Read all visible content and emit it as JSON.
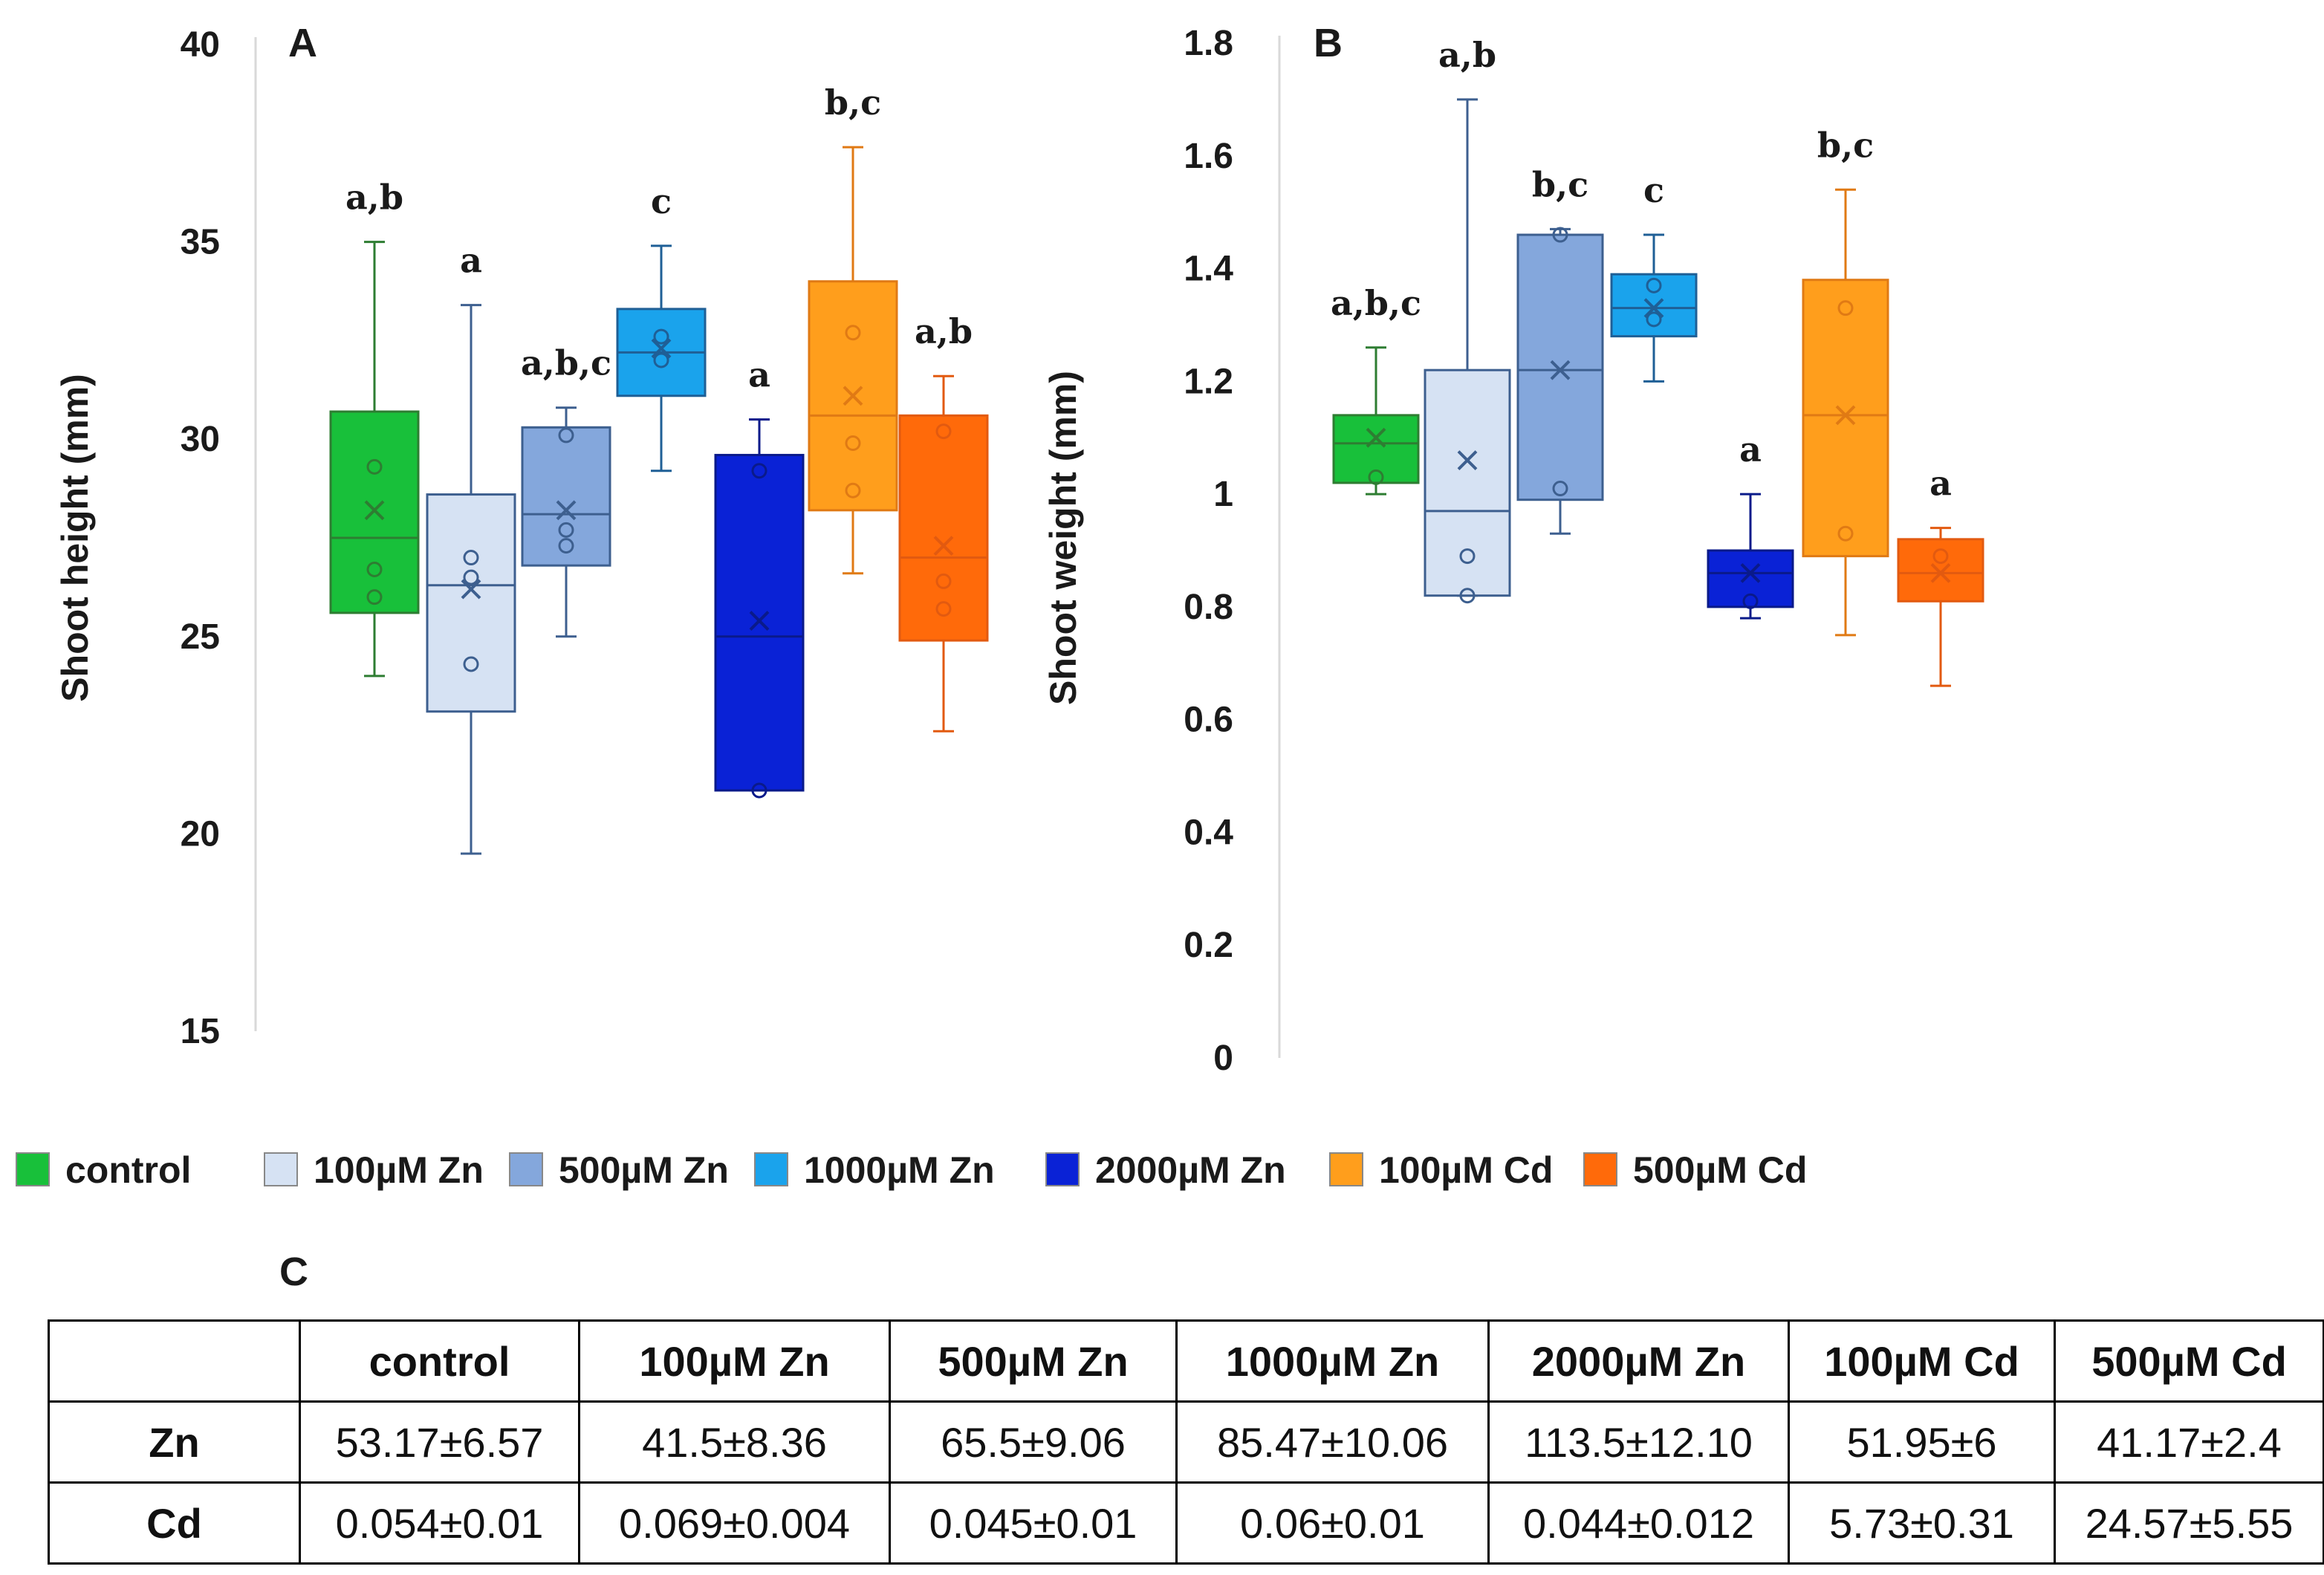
{
  "panel_c_label": "C",
  "table": {
    "headers": [
      "",
      "control",
      "100µM Zn",
      "500µM Zn",
      "1000µM Zn",
      "2000µM Zn",
      "100µM Cd",
      "500µM Cd"
    ],
    "rows": [
      {
        "label": "Zn",
        "values": [
          "53.17±6.57",
          "41.5±8.36",
          "65.5±9.06",
          "85.47±10.06",
          "113.5±12.10",
          "51.95±6",
          "41.17±2.4"
        ]
      },
      {
        "label": "Cd",
        "values": [
          "0.054±0.01",
          "0.069±0.004",
          "0.045±0.01",
          "0.06±0.01",
          "0.044±0.012",
          "5.73±0.31",
          "24.57±5.55"
        ]
      }
    ]
  },
  "legend": [
    {
      "name": "control",
      "color": "#18c03a",
      "stroke": "#2e7d32"
    },
    {
      "name": "100µM Zn",
      "color": "#d6e2f3",
      "stroke": "#3d5f8f"
    },
    {
      "name": "500µM Zn",
      "color": "#84a7dc",
      "stroke": "#3d5f8f"
    },
    {
      "name": "1000µM Zn",
      "color": "#1aa3ec",
      "stroke": "#1f5f96"
    },
    {
      "name": "2000µM Zn",
      "color": "#0a22d6",
      "stroke": "#0a1a8a"
    },
    {
      "name": "100µM Cd",
      "color": "#ff9e1c",
      "stroke": "#e07a14"
    },
    {
      "name": "500µM Cd",
      "color": "#ff6a0a",
      "stroke": "#e25a10"
    }
  ],
  "chart_data": [
    {
      "type": "box",
      "panel": "A",
      "ylabel": "Shoot height (mm)",
      "ylim": [
        15,
        40
      ],
      "yticks": [
        "15",
        "20",
        "25",
        "30",
        "35",
        "40"
      ],
      "grid": false,
      "series": [
        {
          "name": "control",
          "min": 24.0,
          "q1": 25.6,
          "median": 27.5,
          "q3": 30.7,
          "max": 35.0,
          "mean": 28.2,
          "points": [
            29.3,
            26.7,
            26.0
          ],
          "sig": "a,b"
        },
        {
          "name": "100µM Zn",
          "min": 19.5,
          "q1": 23.1,
          "median": 26.3,
          "q3": 28.6,
          "max": 33.4,
          "mean": 26.2,
          "points": [
            27.0,
            26.5,
            24.3
          ],
          "sig": "a"
        },
        {
          "name": "500µM Zn",
          "min": 25.0,
          "q1": 26.8,
          "median": 28.1,
          "q3": 30.3,
          "max": 30.8,
          "mean": 28.2,
          "points": [
            30.1,
            27.7,
            27.3
          ],
          "sig": "a,b,c"
        },
        {
          "name": "1000µM Zn",
          "min": 29.2,
          "q1": 31.1,
          "median": 32.2,
          "q3": 33.3,
          "max": 34.9,
          "mean": 32.3,
          "points": [
            32.6,
            32.0
          ],
          "sig": "c"
        },
        {
          "name": "2000µM Zn",
          "min": 21.1,
          "q1": 21.1,
          "median": 25.0,
          "q3": 29.6,
          "max": 30.5,
          "mean": 25.4,
          "points": [
            29.2,
            21.1
          ],
          "sig": "a"
        },
        {
          "name": "100µM Cd",
          "min": 26.6,
          "q1": 28.2,
          "median": 30.6,
          "q3": 34.0,
          "max": 37.4,
          "mean": 31.1,
          "points": [
            32.7,
            29.9,
            28.7
          ],
          "sig": "b,c"
        },
        {
          "name": "500µM Cd",
          "min": 22.6,
          "q1": 24.9,
          "median": 27.0,
          "q3": 30.6,
          "max": 31.6,
          "mean": 27.3,
          "points": [
            30.2,
            26.4,
            25.7
          ],
          "sig": "a,b"
        }
      ]
    },
    {
      "type": "box",
      "panel": "B",
      "ylabel": "Shoot weight (mm)",
      "ylim": [
        0,
        1.8
      ],
      "yticks": [
        "0",
        "0.2",
        "0.4",
        "0.6",
        "0.8",
        "1",
        "1.2",
        "1.4",
        "1.6",
        "1.8"
      ],
      "grid": false,
      "series": [
        {
          "name": "control",
          "min": 1.0,
          "q1": 1.02,
          "median": 1.09,
          "q3": 1.14,
          "max": 1.26,
          "mean": 1.1,
          "points": [
            1.03
          ],
          "sig": "a,b,c"
        },
        {
          "name": "100µM Zn",
          "min": 0.82,
          "q1": 0.82,
          "median": 0.97,
          "q3": 1.22,
          "max": 1.7,
          "mean": 1.06,
          "points": [
            0.89,
            0.82
          ],
          "sig": "a,b"
        },
        {
          "name": "500µM Zn",
          "min": 0.93,
          "q1": 0.99,
          "median": 1.22,
          "q3": 1.46,
          "max": 1.47,
          "mean": 1.22,
          "points": [
            1.46,
            1.01
          ],
          "sig": "b,c"
        },
        {
          "name": "1000µM Zn",
          "min": 1.2,
          "q1": 1.28,
          "median": 1.33,
          "q3": 1.39,
          "max": 1.46,
          "mean": 1.33,
          "points": [
            1.37,
            1.31
          ],
          "sig": "c"
        },
        {
          "name": "2000µM Zn",
          "min": 0.78,
          "q1": 0.8,
          "median": 0.86,
          "q3": 0.9,
          "max": 1.0,
          "mean": 0.86,
          "points": [
            0.81
          ],
          "sig": "a"
        },
        {
          "name": "100µM Cd",
          "min": 0.75,
          "q1": 0.89,
          "median": 1.14,
          "q3": 1.38,
          "max": 1.54,
          "mean": 1.14,
          "points": [
            1.33,
            0.93
          ],
          "sig": "b,c"
        },
        {
          "name": "500µM Cd",
          "min": 0.66,
          "q1": 0.81,
          "median": 0.86,
          "q3": 0.92,
          "max": 0.94,
          "mean": 0.86,
          "points": [
            0.89
          ],
          "sig": "a"
        }
      ]
    }
  ]
}
